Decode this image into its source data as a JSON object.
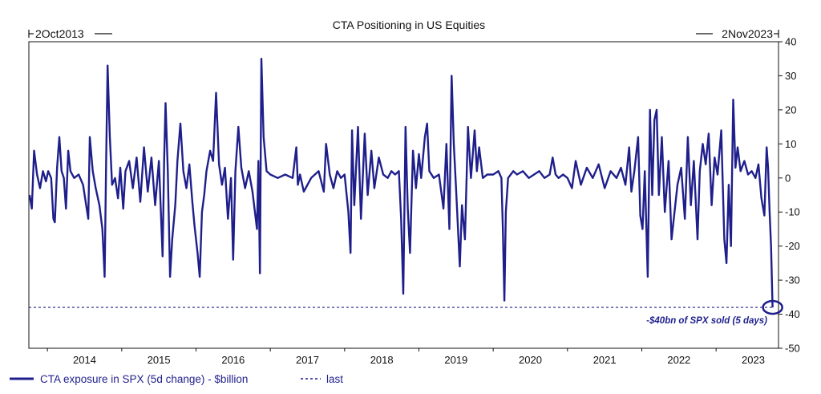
{
  "chart_data": {
    "type": "line",
    "title": "CTA Positioning in US Equities",
    "range_start_label": "2Oct2013",
    "range_end_label": "2Nov2023",
    "x_range": [
      2013.75,
      2023.84
    ],
    "ylim": [
      -50,
      40
    ],
    "y_ticks": [
      40,
      30,
      20,
      10,
      0,
      -10,
      -20,
      -30,
      -40,
      -50
    ],
    "x_ticks": [
      "2014",
      "2015",
      "2016",
      "2017",
      "2018",
      "2019",
      "2020",
      "2021",
      "2022",
      "2023"
    ],
    "y_axis_side": "right",
    "grid": false,
    "legend_position": "bottom-left",
    "colors": {
      "series": "#1f1f8c",
      "axis": "#111111"
    },
    "last_value": -38,
    "annotation": {
      "text": "-$40bn of SPX sold (5 days)",
      "x": 2023.75,
      "y": -38
    },
    "series": [
      {
        "name": "CTA exposure in SPX (5d change) - $billion",
        "style": "solid",
        "points": [
          [
            2013.76,
            -5
          ],
          [
            2013.79,
            -9
          ],
          [
            2013.82,
            8
          ],
          [
            2013.86,
            1
          ],
          [
            2013.9,
            -3
          ],
          [
            2013.94,
            2
          ],
          [
            2013.98,
            -1
          ],
          [
            2014.01,
            2
          ],
          [
            2014.05,
            0
          ],
          [
            2014.08,
            -12
          ],
          [
            2014.1,
            -13
          ],
          [
            2014.13,
            3
          ],
          [
            2014.16,
            12
          ],
          [
            2014.19,
            2
          ],
          [
            2014.22,
            0
          ],
          [
            2014.25,
            -9
          ],
          [
            2014.28,
            8
          ],
          [
            2014.31,
            2
          ],
          [
            2014.36,
            0
          ],
          [
            2014.42,
            1
          ],
          [
            2014.48,
            -2
          ],
          [
            2014.55,
            -12
          ],
          [
            2014.57,
            12
          ],
          [
            2014.61,
            2
          ],
          [
            2014.65,
            -3
          ],
          [
            2014.7,
            -8
          ],
          [
            2014.74,
            -15
          ],
          [
            2014.77,
            -29
          ],
          [
            2014.79,
            5
          ],
          [
            2014.81,
            33
          ],
          [
            2014.84,
            12
          ],
          [
            2014.87,
            -2
          ],
          [
            2014.91,
            0
          ],
          [
            2014.95,
            -6
          ],
          [
            2014.98,
            3
          ],
          [
            2015.02,
            -9
          ],
          [
            2015.05,
            2
          ],
          [
            2015.1,
            5
          ],
          [
            2015.15,
            -3
          ],
          [
            2015.2,
            6
          ],
          [
            2015.25,
            -7
          ],
          [
            2015.3,
            9
          ],
          [
            2015.35,
            -4
          ],
          [
            2015.4,
            6
          ],
          [
            2015.45,
            -8
          ],
          [
            2015.5,
            5
          ],
          [
            2015.55,
            -23
          ],
          [
            2015.57,
            5
          ],
          [
            2015.59,
            22
          ],
          [
            2015.62,
            2
          ],
          [
            2015.65,
            -29
          ],
          [
            2015.68,
            -18
          ],
          [
            2015.72,
            -8
          ],
          [
            2015.75,
            5
          ],
          [
            2015.79,
            16
          ],
          [
            2015.83,
            2
          ],
          [
            2015.87,
            -3
          ],
          [
            2015.91,
            4
          ],
          [
            2015.95,
            -7
          ],
          [
            2015.98,
            -14
          ],
          [
            2016.02,
            -22
          ],
          [
            2016.05,
            -29
          ],
          [
            2016.08,
            -10
          ],
          [
            2016.11,
            -5
          ],
          [
            2016.14,
            2
          ],
          [
            2016.19,
            8
          ],
          [
            2016.23,
            5
          ],
          [
            2016.27,
            25
          ],
          [
            2016.31,
            4
          ],
          [
            2016.35,
            -2
          ],
          [
            2016.39,
            3
          ],
          [
            2016.43,
            -12
          ],
          [
            2016.47,
            0
          ],
          [
            2016.5,
            -24
          ],
          [
            2016.53,
            2
          ],
          [
            2016.57,
            15
          ],
          [
            2016.61,
            3
          ],
          [
            2016.66,
            -3
          ],
          [
            2016.71,
            2
          ],
          [
            2016.76,
            -4
          ],
          [
            2016.82,
            -15
          ],
          [
            2016.84,
            5
          ],
          [
            2016.86,
            -28
          ],
          [
            2016.88,
            35
          ],
          [
            2016.91,
            12
          ],
          [
            2016.95,
            2
          ],
          [
            2017.0,
            1
          ],
          [
            2017.1,
            0
          ],
          [
            2017.2,
            1
          ],
          [
            2017.3,
            0
          ],
          [
            2017.35,
            9
          ],
          [
            2017.37,
            -2
          ],
          [
            2017.4,
            1
          ],
          [
            2017.45,
            -4
          ],
          [
            2017.55,
            0
          ],
          [
            2017.65,
            2
          ],
          [
            2017.72,
            -4
          ],
          [
            2017.75,
            10
          ],
          [
            2017.8,
            1
          ],
          [
            2017.85,
            -3
          ],
          [
            2017.9,
            2
          ],
          [
            2017.95,
            0
          ],
          [
            2018.0,
            1
          ],
          [
            2018.05,
            -10
          ],
          [
            2018.08,
            -22
          ],
          [
            2018.1,
            14
          ],
          [
            2018.13,
            -8
          ],
          [
            2018.18,
            15
          ],
          [
            2018.22,
            -12
          ],
          [
            2018.27,
            13
          ],
          [
            2018.31,
            -5
          ],
          [
            2018.36,
            8
          ],
          [
            2018.4,
            -3
          ],
          [
            2018.46,
            6
          ],
          [
            2018.52,
            1
          ],
          [
            2018.58,
            0
          ],
          [
            2018.63,
            2
          ],
          [
            2018.68,
            1
          ],
          [
            2018.73,
            2
          ],
          [
            2018.76,
            -12
          ],
          [
            2018.79,
            -34
          ],
          [
            2018.82,
            15
          ],
          [
            2018.85,
            -9
          ],
          [
            2018.88,
            -22
          ],
          [
            2018.92,
            8
          ],
          [
            2018.96,
            -3
          ],
          [
            2019.0,
            7
          ],
          [
            2019.03,
            0
          ],
          [
            2019.08,
            12
          ],
          [
            2019.11,
            16
          ],
          [
            2019.14,
            2
          ],
          [
            2019.2,
            0
          ],
          [
            2019.27,
            1
          ],
          [
            2019.33,
            -9
          ],
          [
            2019.37,
            10
          ],
          [
            2019.41,
            -15
          ],
          [
            2019.44,
            30
          ],
          [
            2019.47,
            10
          ],
          [
            2019.5,
            -3
          ],
          [
            2019.55,
            -26
          ],
          [
            2019.58,
            -8
          ],
          [
            2019.62,
            -18
          ],
          [
            2019.66,
            15
          ],
          [
            2019.7,
            0
          ],
          [
            2019.75,
            14
          ],
          [
            2019.78,
            2
          ],
          [
            2019.81,
            9
          ],
          [
            2019.86,
            0
          ],
          [
            2019.92,
            1
          ],
          [
            2020.0,
            1
          ],
          [
            2020.07,
            2
          ],
          [
            2020.11,
            0
          ],
          [
            2020.13,
            -15
          ],
          [
            2020.15,
            -36
          ],
          [
            2020.17,
            -10
          ],
          [
            2020.2,
            0
          ],
          [
            2020.27,
            2
          ],
          [
            2020.32,
            1
          ],
          [
            2020.4,
            2
          ],
          [
            2020.48,
            0
          ],
          [
            2020.55,
            1
          ],
          [
            2020.62,
            2
          ],
          [
            2020.69,
            0
          ],
          [
            2020.76,
            1
          ],
          [
            2020.8,
            6
          ],
          [
            2020.84,
            1
          ],
          [
            2020.88,
            0
          ],
          [
            2020.94,
            1
          ],
          [
            2021.0,
            0
          ],
          [
            2021.06,
            -3
          ],
          [
            2021.11,
            5
          ],
          [
            2021.18,
            -2
          ],
          [
            2021.26,
            3
          ],
          [
            2021.34,
            0
          ],
          [
            2021.42,
            4
          ],
          [
            2021.5,
            -3
          ],
          [
            2021.58,
            2
          ],
          [
            2021.66,
            0
          ],
          [
            2021.72,
            3
          ],
          [
            2021.78,
            -2
          ],
          [
            2021.83,
            9
          ],
          [
            2021.86,
            -4
          ],
          [
            2021.9,
            2
          ],
          [
            2021.95,
            12
          ],
          [
            2021.98,
            -11
          ],
          [
            2022.01,
            -15
          ],
          [
            2022.04,
            2
          ],
          [
            2022.08,
            -29
          ],
          [
            2022.11,
            20
          ],
          [
            2022.14,
            -5
          ],
          [
            2022.17,
            17
          ],
          [
            2022.2,
            20
          ],
          [
            2022.23,
            -5
          ],
          [
            2022.27,
            12
          ],
          [
            2022.31,
            -10
          ],
          [
            2022.36,
            5
          ],
          [
            2022.4,
            -18
          ],
          [
            2022.44,
            -10
          ],
          [
            2022.48,
            -2
          ],
          [
            2022.53,
            3
          ],
          [
            2022.58,
            -12
          ],
          [
            2022.62,
            12
          ],
          [
            2022.66,
            -8
          ],
          [
            2022.7,
            5
          ],
          [
            2022.75,
            -18
          ],
          [
            2022.78,
            2
          ],
          [
            2022.82,
            10
          ],
          [
            2022.86,
            4
          ],
          [
            2022.9,
            13
          ],
          [
            2022.94,
            -8
          ],
          [
            2022.98,
            6
          ],
          [
            2023.02,
            1
          ],
          [
            2023.07,
            14
          ],
          [
            2023.11,
            -18
          ],
          [
            2023.14,
            -25
          ],
          [
            2023.17,
            -2
          ],
          [
            2023.2,
            -20
          ],
          [
            2023.23,
            23
          ],
          [
            2023.26,
            3
          ],
          [
            2023.29,
            9
          ],
          [
            2023.33,
            2
          ],
          [
            2023.38,
            5
          ],
          [
            2023.43,
            1
          ],
          [
            2023.48,
            2
          ],
          [
            2023.53,
            0
          ],
          [
            2023.57,
            4
          ],
          [
            2023.61,
            -6
          ],
          [
            2023.65,
            -11
          ],
          [
            2023.68,
            9
          ],
          [
            2023.7,
            3
          ],
          [
            2023.72,
            -10
          ],
          [
            2023.74,
            -20
          ],
          [
            2023.76,
            -38
          ]
        ]
      },
      {
        "name": "last",
        "style": "dashed"
      }
    ]
  }
}
